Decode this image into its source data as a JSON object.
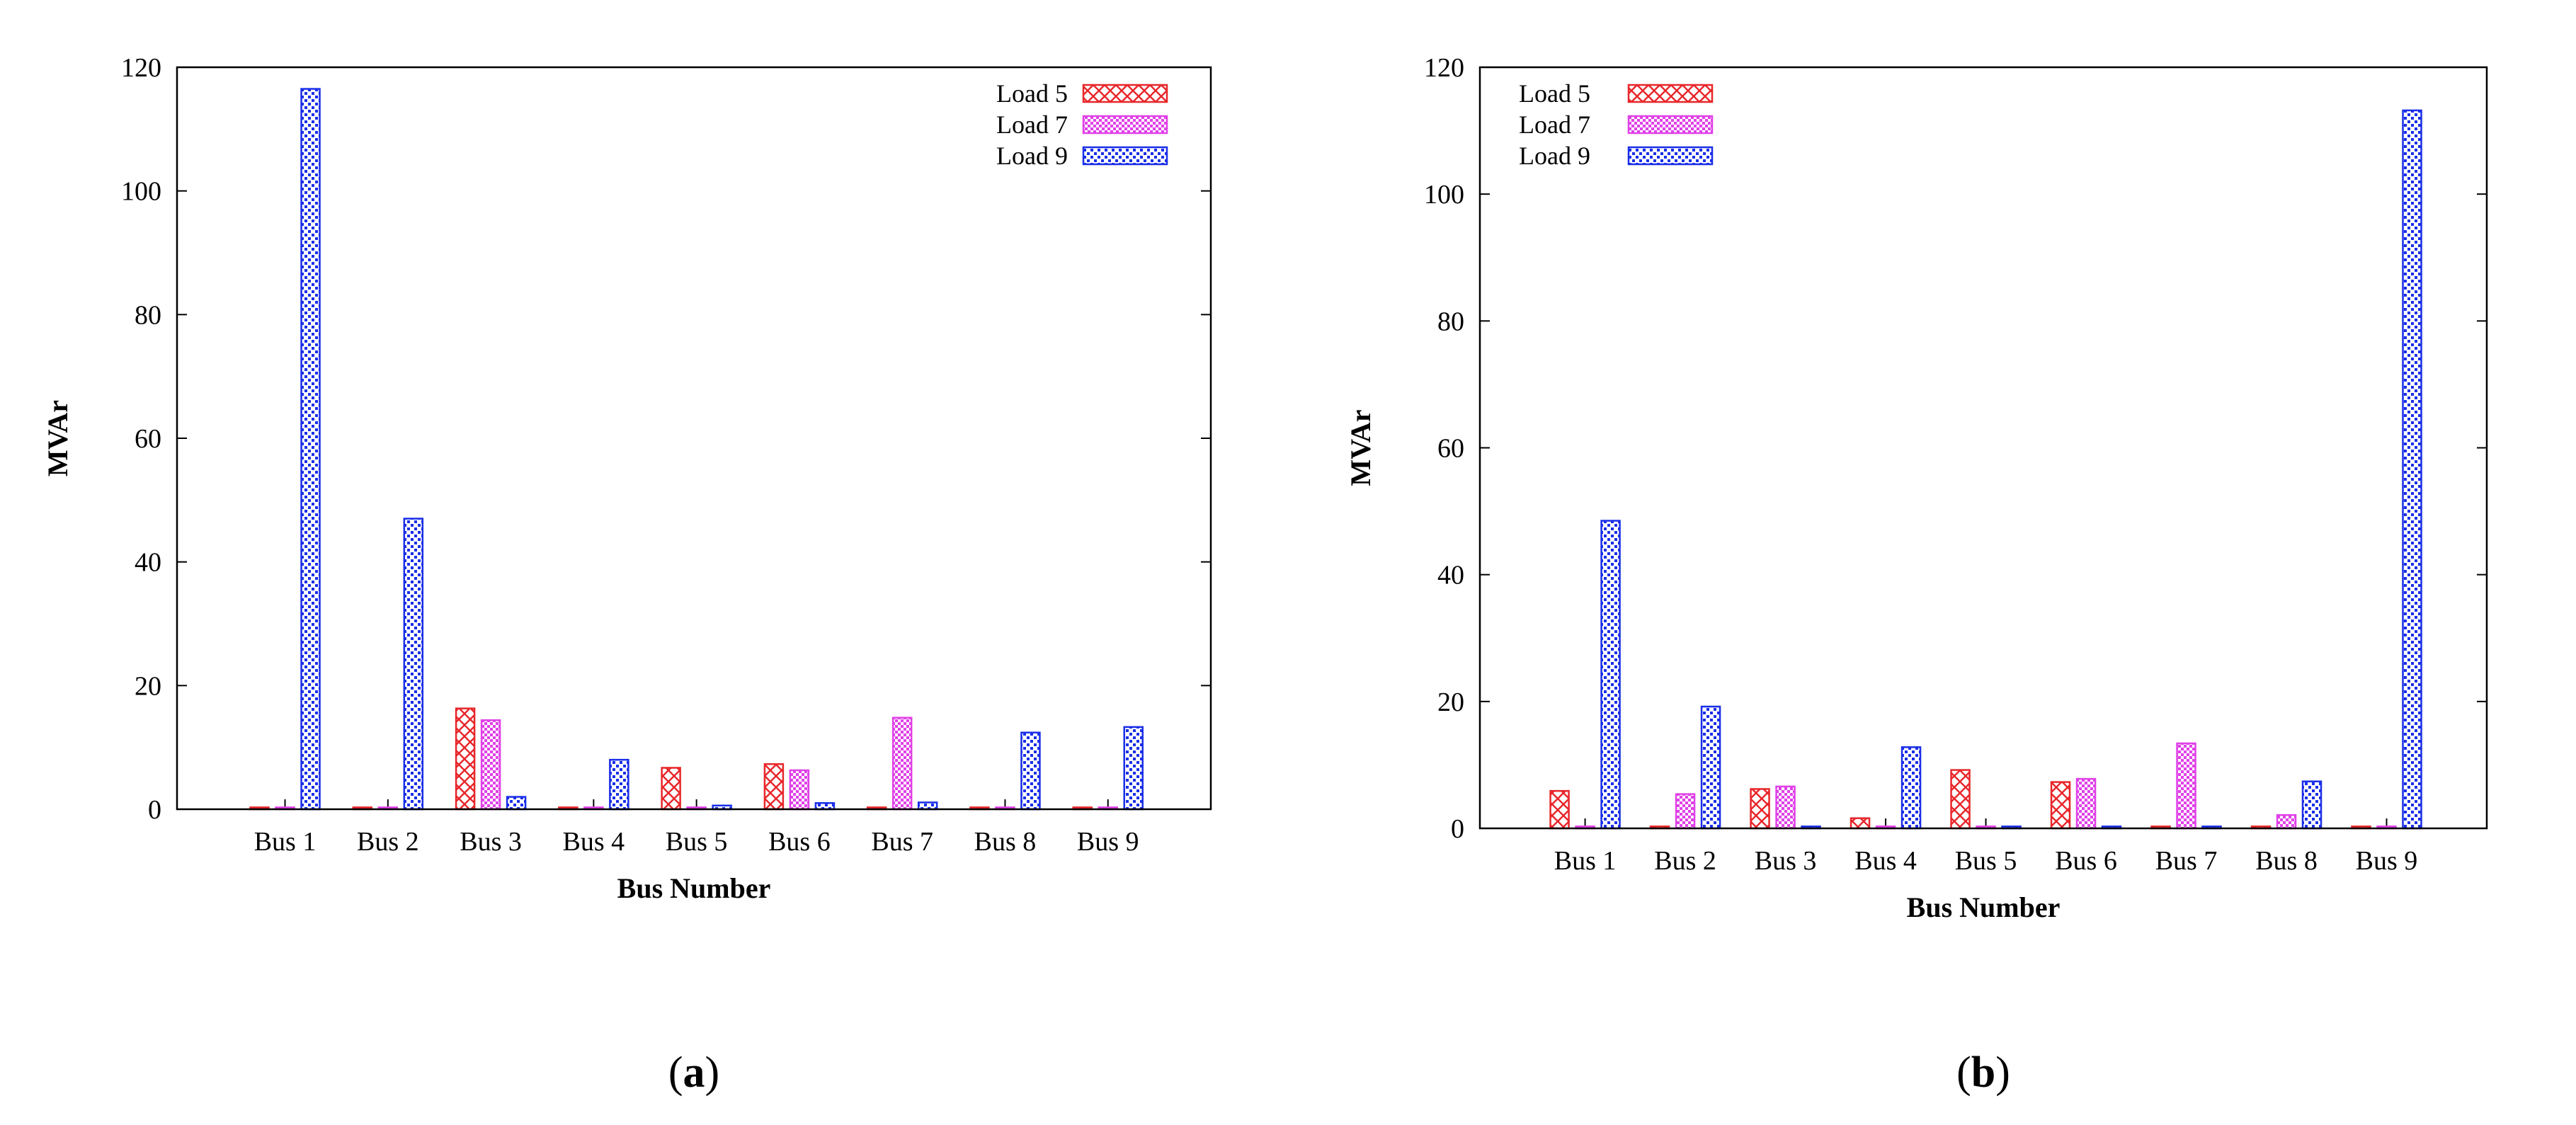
{
  "chart_data": [
    {
      "type": "bar",
      "panel_label": "a",
      "title": "",
      "xlabel": "Bus Number",
      "ylabel": "MVAr",
      "ylim": [
        0,
        120
      ],
      "yticks": [
        0,
        20,
        40,
        60,
        80,
        100,
        120
      ],
      "categories": [
        "Bus 1",
        "Bus 2",
        "Bus 3",
        "Bus 4",
        "Bus 5",
        "Bus 6",
        "Bus 7",
        "Bus 8",
        "Bus 9"
      ],
      "legend_position": "top-right",
      "series": [
        {
          "name": "Load 5",
          "color": "#e8262a",
          "pattern": "crosshatch",
          "values": [
            0.3,
            0.3,
            16.3,
            0.3,
            6.7,
            7.3,
            0.3,
            0.3,
            0.3
          ]
        },
        {
          "name": "Load 7",
          "color": "#e040e8",
          "pattern": "checker",
          "values": [
            0.3,
            0.3,
            14.4,
            0.3,
            0.3,
            6.3,
            14.8,
            0.3,
            0.3
          ]
        },
        {
          "name": "Load 9",
          "color": "#1a2ee8",
          "pattern": "dots",
          "values": [
            116.5,
            47.0,
            2.0,
            8.0,
            0.6,
            1.0,
            1.1,
            12.4,
            13.3
          ]
        }
      ]
    },
    {
      "type": "bar",
      "panel_label": "b",
      "title": "",
      "xlabel": "Bus Number",
      "ylabel": "MVAr",
      "ylim": [
        0,
        120
      ],
      "yticks": [
        0,
        20,
        40,
        60,
        80,
        100,
        120
      ],
      "categories": [
        "Bus 1",
        "Bus 2",
        "Bus 3",
        "Bus 4",
        "Bus 5",
        "Bus 6",
        "Bus 7",
        "Bus 8",
        "Bus 9"
      ],
      "legend_position": "top-left",
      "series": [
        {
          "name": "Load 5",
          "color": "#e8262a",
          "pattern": "crosshatch",
          "values": [
            5.9,
            0.3,
            6.2,
            1.6,
            9.2,
            7.3,
            0.3,
            0.3,
            0.3
          ]
        },
        {
          "name": "Load 7",
          "color": "#e040e8",
          "pattern": "checker",
          "values": [
            0.3,
            5.4,
            6.6,
            0.3,
            0.3,
            7.8,
            13.4,
            2.1,
            0.3
          ]
        },
        {
          "name": "Load 9",
          "color": "#1a2ee8",
          "pattern": "dots",
          "values": [
            48.5,
            19.2,
            0.3,
            12.8,
            0.3,
            0.3,
            0.3,
            7.4,
            113.2
          ]
        }
      ]
    }
  ]
}
